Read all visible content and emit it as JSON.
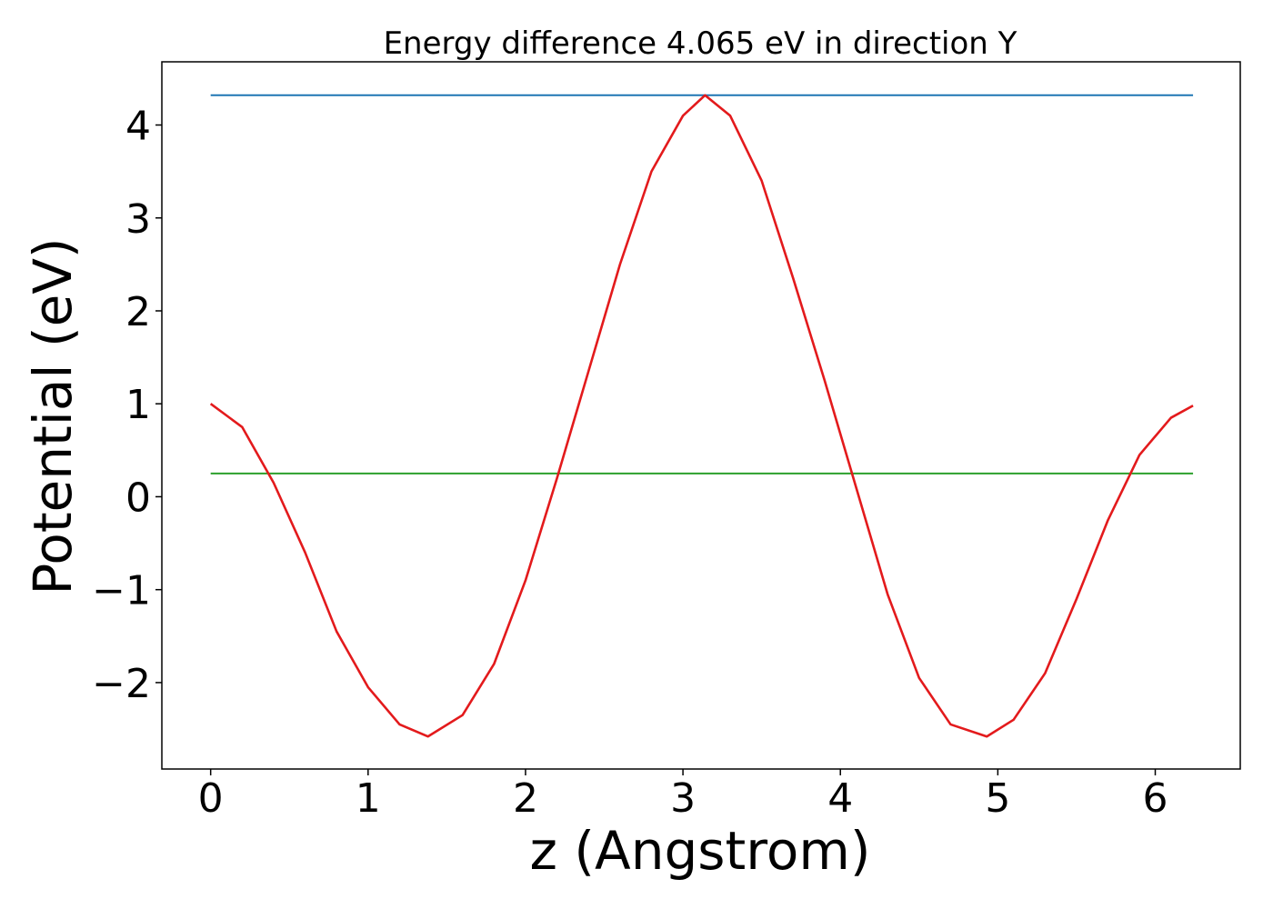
{
  "chart_data": {
    "type": "line",
    "title": "Energy difference 4.065 eV in direction Y",
    "xlabel": "z (Angstrom)",
    "ylabel": "Potential (eV)",
    "xlim": [
      -0.31,
      6.54
    ],
    "ylim": [
      -2.93,
      4.68
    ],
    "xticks": [
      0,
      1,
      2,
      3,
      4,
      5,
      6
    ],
    "xtick_labels": [
      "0",
      "1",
      "2",
      "3",
      "4",
      "5",
      "6"
    ],
    "yticks": [
      -2,
      -1,
      0,
      1,
      2,
      3,
      4
    ],
    "ytick_labels": [
      "−2",
      "−1",
      "0",
      "1",
      "2",
      "3",
      "4"
    ],
    "grid": false,
    "series": [
      {
        "color": "#1f77b4",
        "x": [
          0,
          6.24
        ],
        "y": [
          4.32,
          4.32
        ]
      },
      {
        "color": "#2ca02c",
        "x": [
          0,
          6.24
        ],
        "y": [
          0.25,
          0.25
        ]
      },
      {
        "color": "#e31a1c",
        "x": [
          0,
          0.2,
          0.4,
          0.6,
          0.8,
          1.0,
          1.2,
          1.38,
          1.6,
          1.8,
          2.0,
          2.2,
          2.4,
          2.6,
          2.8,
          3.0,
          3.14,
          3.3,
          3.5,
          3.7,
          3.9,
          4.1,
          4.3,
          4.5,
          4.7,
          4.93,
          5.1,
          5.3,
          5.5,
          5.7,
          5.9,
          6.1,
          6.24
        ],
        "y": [
          1.0,
          0.75,
          0.15,
          -0.6,
          -1.45,
          -2.05,
          -2.45,
          -2.58,
          -2.35,
          -1.8,
          -0.9,
          0.2,
          1.35,
          2.5,
          3.5,
          4.1,
          4.32,
          4.1,
          3.4,
          2.35,
          1.25,
          0.1,
          -1.05,
          -1.95,
          -2.45,
          -2.58,
          -2.4,
          -1.9,
          -1.1,
          -0.25,
          0.45,
          0.85,
          0.98
        ]
      }
    ]
  }
}
